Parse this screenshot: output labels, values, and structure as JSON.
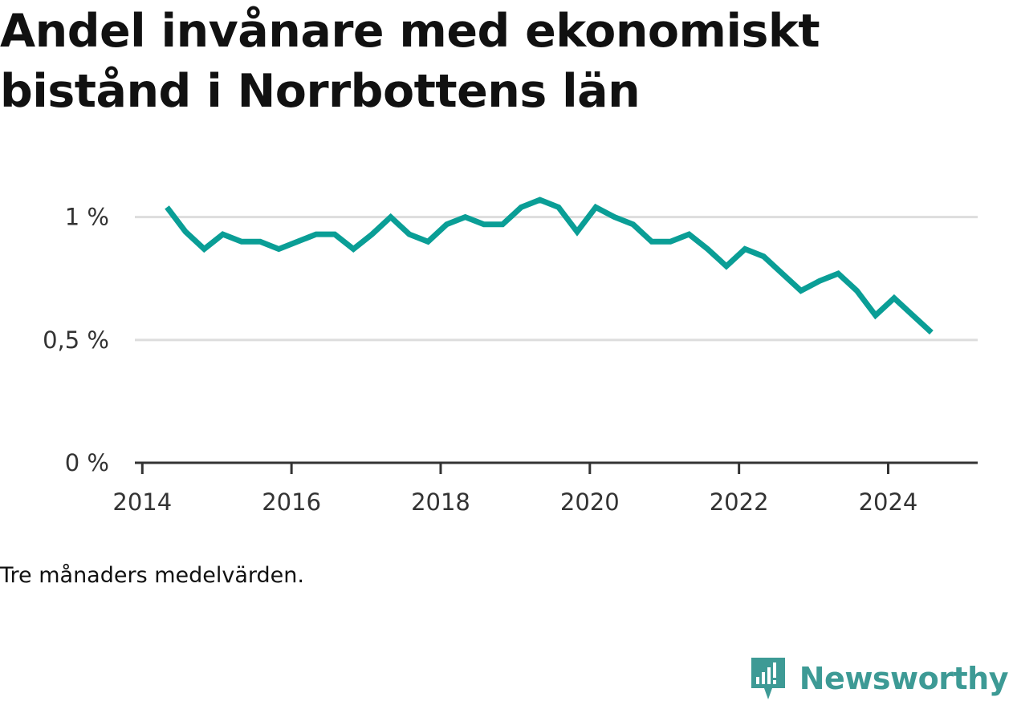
{
  "title": "Andel invånare med ekonomiskt bistånd i Norrbottens län",
  "note": "Tre månaders medelvärden.",
  "brand": {
    "name": "Newsworthy",
    "icon": "newsworthy-logo-icon"
  },
  "colors": {
    "line": "#0a9e96",
    "grid": "#dddddd",
    "axis": "#333333",
    "brand": "#3d9a95"
  },
  "chart_data": {
    "type": "line",
    "title": "Andel invånare med ekonomiskt bistånd i Norrbottens län",
    "xlabel": "",
    "ylabel": "",
    "ylim": [
      0,
      1.1
    ],
    "xlim": [
      2013.9,
      2025.2
    ],
    "y_ticks": [
      0,
      0.5,
      1
    ],
    "y_tick_labels": [
      "0 %",
      "0,5 %",
      "1 %"
    ],
    "x_ticks": [
      2014,
      2016,
      2018,
      2020,
      2022,
      2024
    ],
    "x_tick_labels": [
      "2014",
      "2016",
      "2018",
      "2020",
      "2022",
      "2024"
    ],
    "grid": true,
    "series": [
      {
        "x": [
          2014.33,
          2014.58,
          2014.83,
          2015.08,
          2015.33,
          2015.58,
          2015.83,
          2016.08,
          2016.33,
          2016.58,
          2016.83,
          2017.08,
          2017.33,
          2017.58,
          2017.83,
          2018.08,
          2018.33,
          2018.58,
          2018.83,
          2019.08,
          2019.33,
          2019.58,
          2019.83,
          2020.08,
          2020.33,
          2020.58,
          2020.83,
          2021.08,
          2021.33,
          2021.58,
          2021.83,
          2022.08,
          2022.33,
          2022.58,
          2022.83,
          2023.08,
          2023.33,
          2023.58,
          2023.83,
          2024.08,
          2024.33,
          2024.58
        ],
        "y": [
          1.04,
          0.94,
          0.87,
          0.93,
          0.9,
          0.9,
          0.87,
          0.9,
          0.93,
          0.93,
          0.87,
          0.93,
          1.0,
          0.93,
          0.9,
          0.97,
          1.0,
          0.97,
          0.97,
          1.04,
          1.07,
          1.04,
          0.94,
          1.04,
          1.0,
          0.97,
          0.9,
          0.9,
          0.93,
          0.87,
          0.8,
          0.87,
          0.84,
          0.77,
          0.7,
          0.74,
          0.77,
          0.7,
          0.6,
          0.67,
          0.6,
          0.53
        ]
      }
    ]
  }
}
